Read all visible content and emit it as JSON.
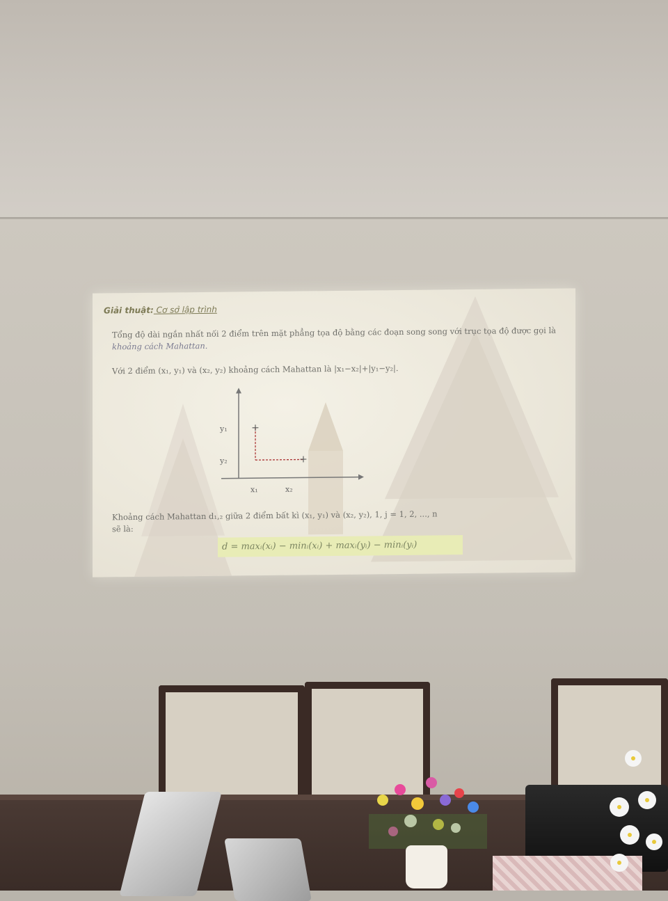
{
  "slide": {
    "title_bold": "Giải thuật:",
    "title_rest": " Cơ sở lập trình",
    "para1": "Tổng độ dài ngắn nhất nối 2 điểm trên mặt phẳng tọa độ bằng các đoạn song song với trục tọa độ được gọi là ",
    "para1_italic": "khoảng cách Mahattan.",
    "para2": "Với 2 điểm (x₁, y₁) và (x₂, y₂) khoảng cách Mahattan là |x₁−x₂|+|y₁−y₂|.",
    "graph_labels": {
      "y1": "y₁",
      "y2": "y₂",
      "x1": "x₁",
      "x2": "x₂"
    },
    "para3": "Khoảng cách Mahattan d₁,₂ giữa 2 điểm bất kì (x₁, y₁) và (x₂, y₂), 1, j = 1, 2, ..., n",
    "para3b": "sẽ là:",
    "formula": "d = maxᵢ(xᵢ) − minᵢ(xᵢ) + maxᵢ(yᵢ) − minᵢ(yᵢ)"
  },
  "colors": {
    "wall": "#c8c3ba",
    "slide_bg": "#efece0",
    "chair_frame": "#3a2a25",
    "table": "#3f302a"
  }
}
